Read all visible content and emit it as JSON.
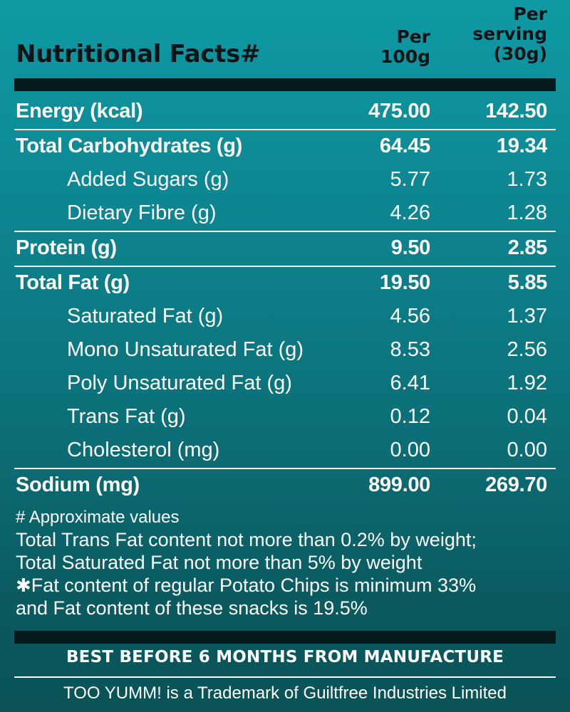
{
  "header": {
    "title": "Nutritional Facts#",
    "col1_line1": "Per",
    "col1_line2": "100g",
    "col2_line1": "Per",
    "col2_line2": "serving",
    "col2_line3": "(30g)"
  },
  "rows": [
    {
      "label": "Energy (kcal)",
      "per100g": "475.00",
      "perServing": "142.50",
      "style": "main"
    },
    {
      "label": "Total Carbohydrates (g)",
      "per100g": "64.45",
      "perServing": "19.34",
      "style": "main"
    },
    {
      "label": "Added Sugars (g)",
      "per100g": "5.77",
      "perServing": "1.73",
      "style": "sub"
    },
    {
      "label": "Dietary Fibre (g)",
      "per100g": "4.26",
      "perServing": "1.28",
      "style": "sub"
    },
    {
      "label": "Protein (g)",
      "per100g": "9.50",
      "perServing": "2.85",
      "style": "main"
    },
    {
      "label": "Total Fat (g)",
      "per100g": "19.50",
      "perServing": "5.85",
      "style": "main"
    },
    {
      "label": "Saturated Fat (g)",
      "per100g": "4.56",
      "perServing": "1.37",
      "style": "sub"
    },
    {
      "label": "Mono Unsaturated Fat (g)",
      "per100g": "8.53",
      "perServing": "2.56",
      "style": "sub"
    },
    {
      "label": "Poly Unsaturated Fat (g)",
      "per100g": "6.41",
      "perServing": "1.92",
      "style": "sub"
    },
    {
      "label": "Trans Fat (g)",
      "per100g": "0.12",
      "perServing": "0.04",
      "style": "sub"
    },
    {
      "label": "Cholesterol (mg)",
      "per100g": "0.00",
      "perServing": "0.00",
      "style": "sub"
    },
    {
      "label": "Sodium (mg)",
      "per100g": "899.00",
      "perServing": "269.70",
      "style": "main"
    }
  ],
  "notes": {
    "approx": "# Approximate values",
    "trans_fat": "Total Trans Fat content not more than 0.2% by weight;",
    "sat_fat": "Total Saturated Fat not more than 5% by weight",
    "star": "✱",
    "fat_line1": "Fat content of regular Potato Chips is minimum 33%",
    "fat_line2": "and Fat content of these snacks is 19.5%"
  },
  "footer": {
    "best_before": "BEST BEFORE 6 MONTHS FROM MANUFACTURE",
    "trademark": "TOO YUMM! is a Trademark of Guiltfree Industries Limited"
  }
}
